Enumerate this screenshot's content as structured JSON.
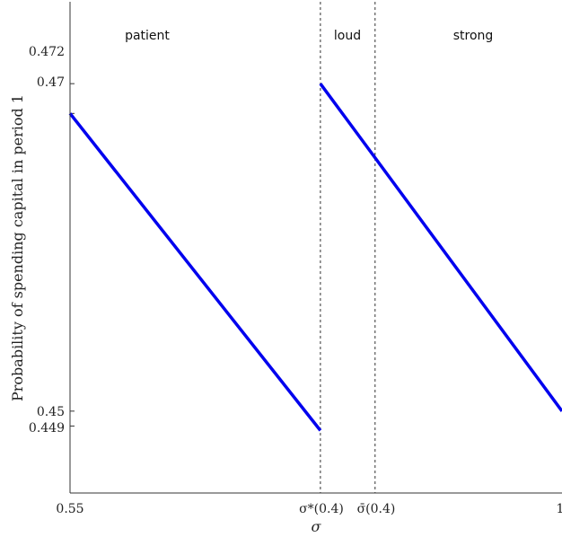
{
  "chart_data": {
    "type": "line",
    "xlabel": "σ",
    "ylabel": "Probability of spending capital in period 1",
    "xlim": [
      0.55,
      1.0
    ],
    "ylim": [
      0.4445,
      0.4775
    ],
    "x_ticks": [
      "0.55",
      "σ*(0.4)",
      "σ̄(0.4)",
      "1"
    ],
    "y_ticks": [
      "0.472",
      "0.47",
      "0.45",
      "0.449"
    ],
    "y_tick_values": [
      0.472,
      0.47,
      0.45,
      0.449
    ],
    "vertical_lines": [
      {
        "x": 0.779,
        "label": "σ*(0.4)",
        "style": "dashed"
      },
      {
        "x": 0.829,
        "label": "σ̄(0.4)",
        "style": "dashed"
      }
    ],
    "region_labels": [
      "patient",
      "loud",
      "strong"
    ],
    "region_label_x": [
      0.624,
      0.804,
      0.915
    ],
    "series": [
      {
        "color": "#0000ee",
        "segments": [
          [
            [
              0.55,
              0.47
            ],
            [
              0.779,
              0.4487
            ]
          ],
          [
            [
              0.779,
              0.472
            ],
            [
              1.0,
              0.45
            ]
          ]
        ]
      }
    ]
  }
}
